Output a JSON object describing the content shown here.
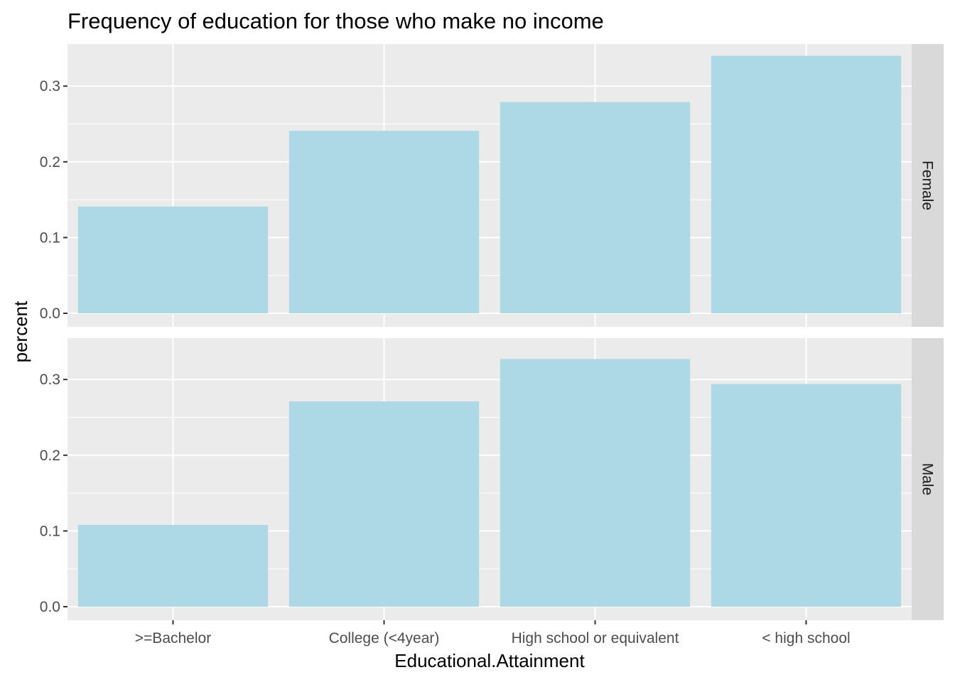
{
  "chart_data": {
    "type": "bar",
    "title": "Frequency of education for those who make no income",
    "xlabel": "Educational.Attainment",
    "ylabel": "percent",
    "categories": [
      ">=Bachelor",
      "College (<4year)",
      "High school or equivalent",
      "< high school"
    ],
    "ylim": [
      0,
      0.35
    ],
    "yticks": [
      "0.0",
      "0.1",
      "0.2",
      "0.3"
    ],
    "bar_color": "#add8e6",
    "panel_background": "#ebebeb",
    "strip_background": "#d9d9d9",
    "grid": true,
    "facets": [
      {
        "name": "Female",
        "values": [
          0.141,
          0.241,
          0.279,
          0.34
        ]
      },
      {
        "name": "Male",
        "values": [
          0.108,
          0.271,
          0.327,
          0.294
        ]
      }
    ]
  }
}
